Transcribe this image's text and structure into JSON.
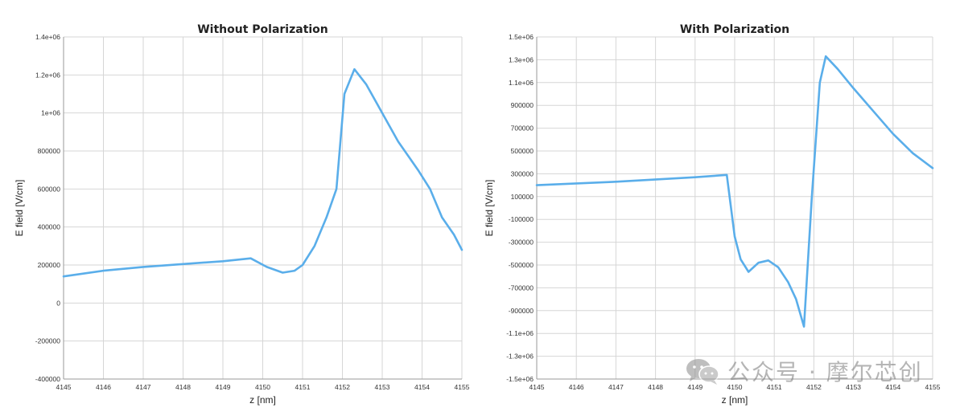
{
  "chart_data": [
    {
      "type": "line",
      "title": "Without Polarization",
      "xlabel": "z [nm]",
      "ylabel": "E field [V/cm]",
      "xlim": [
        4145,
        4155
      ],
      "ylim": [
        -400000,
        1400000
      ],
      "grid": true,
      "x_ticks": [
        4145,
        4146,
        4147,
        4148,
        4149,
        4150,
        4151,
        4152,
        4153,
        4154,
        4155
      ],
      "x_tick_labels": [
        "4145",
        "4146",
        "4147",
        "4148",
        "4149",
        "4150",
        "4151",
        "4152",
        "4153",
        "4154",
        "4155"
      ],
      "y_ticks": [
        -400000,
        -200000,
        0,
        200000,
        400000,
        600000,
        800000,
        1000000,
        1200000,
        1400000
      ],
      "y_tick_labels": [
        "-400000",
        "-200000",
        "0",
        "200000",
        "400000",
        "600000",
        "800000",
        "1e+06",
        "1.2e+06",
        "1.4e+06"
      ],
      "color": "#5aaeea",
      "series": [
        {
          "x": [
            4145,
            4146,
            4147,
            4148,
            4149,
            4149.7,
            4150.1,
            4150.5,
            4150.8,
            4151.0,
            4151.3,
            4151.6,
            4151.85,
            4152.05,
            4152.3,
            4152.6,
            4153.0,
            4153.4,
            4153.9,
            4154.2,
            4154.5,
            4154.8,
            4155.0
          ],
          "y": [
            140000,
            170000,
            190000,
            205000,
            220000,
            235000,
            190000,
            160000,
            170000,
            200000,
            300000,
            450000,
            600000,
            1100000,
            1230000,
            1150000,
            1000000,
            850000,
            700000,
            600000,
            450000,
            360000,
            280000
          ]
        }
      ]
    },
    {
      "type": "line",
      "title": "With Polarization",
      "xlabel": "z [nm]",
      "ylabel": "E field [V/cm]",
      "xlim": [
        4145,
        4155
      ],
      "ylim": [
        -1500000,
        1500000
      ],
      "grid": true,
      "x_ticks": [
        4145,
        4146,
        4147,
        4148,
        4149,
        4150,
        4151,
        4152,
        4153,
        4154,
        4155
      ],
      "x_tick_labels": [
        "4145",
        "4146",
        "4147",
        "4148",
        "4149",
        "4150",
        "4151",
        "4152",
        "4153",
        "4154",
        "4155"
      ],
      "y_ticks": [
        -1500000,
        -1300000,
        -1100000,
        -900000,
        -700000,
        -500000,
        -300000,
        -100000,
        100000,
        300000,
        500000,
        700000,
        900000,
        1100000,
        1300000,
        1500000
      ],
      "y_tick_labels": [
        "-1.5e+06",
        "-1.3e+06",
        "-1.1e+06",
        "-900000",
        "-700000",
        "-500000",
        "-300000",
        "-100000",
        "100000",
        "300000",
        "500000",
        "700000",
        "900000",
        "1.1e+06",
        "1.3e+06",
        "1.5e+06"
      ],
      "color": "#5aaeea",
      "series": [
        {
          "x": [
            4145,
            4147,
            4149,
            4149.8,
            4150.0,
            4150.15,
            4150.35,
            4150.6,
            4150.85,
            4151.1,
            4151.35,
            4151.55,
            4151.75,
            4151.95,
            4152.15,
            4152.3,
            4152.6,
            4153.0,
            4153.5,
            4154.0,
            4154.5,
            4155.0
          ],
          "y": [
            200000,
            230000,
            270000,
            290000,
            -250000,
            -450000,
            -560000,
            -480000,
            -460000,
            -520000,
            -650000,
            -800000,
            -1040000,
            100000,
            1100000,
            1330000,
            1220000,
            1050000,
            850000,
            650000,
            480000,
            350000
          ]
        }
      ]
    }
  ],
  "watermark": {
    "icon": "wechat-icon",
    "text": "公众号 · 摩尔芯创"
  }
}
